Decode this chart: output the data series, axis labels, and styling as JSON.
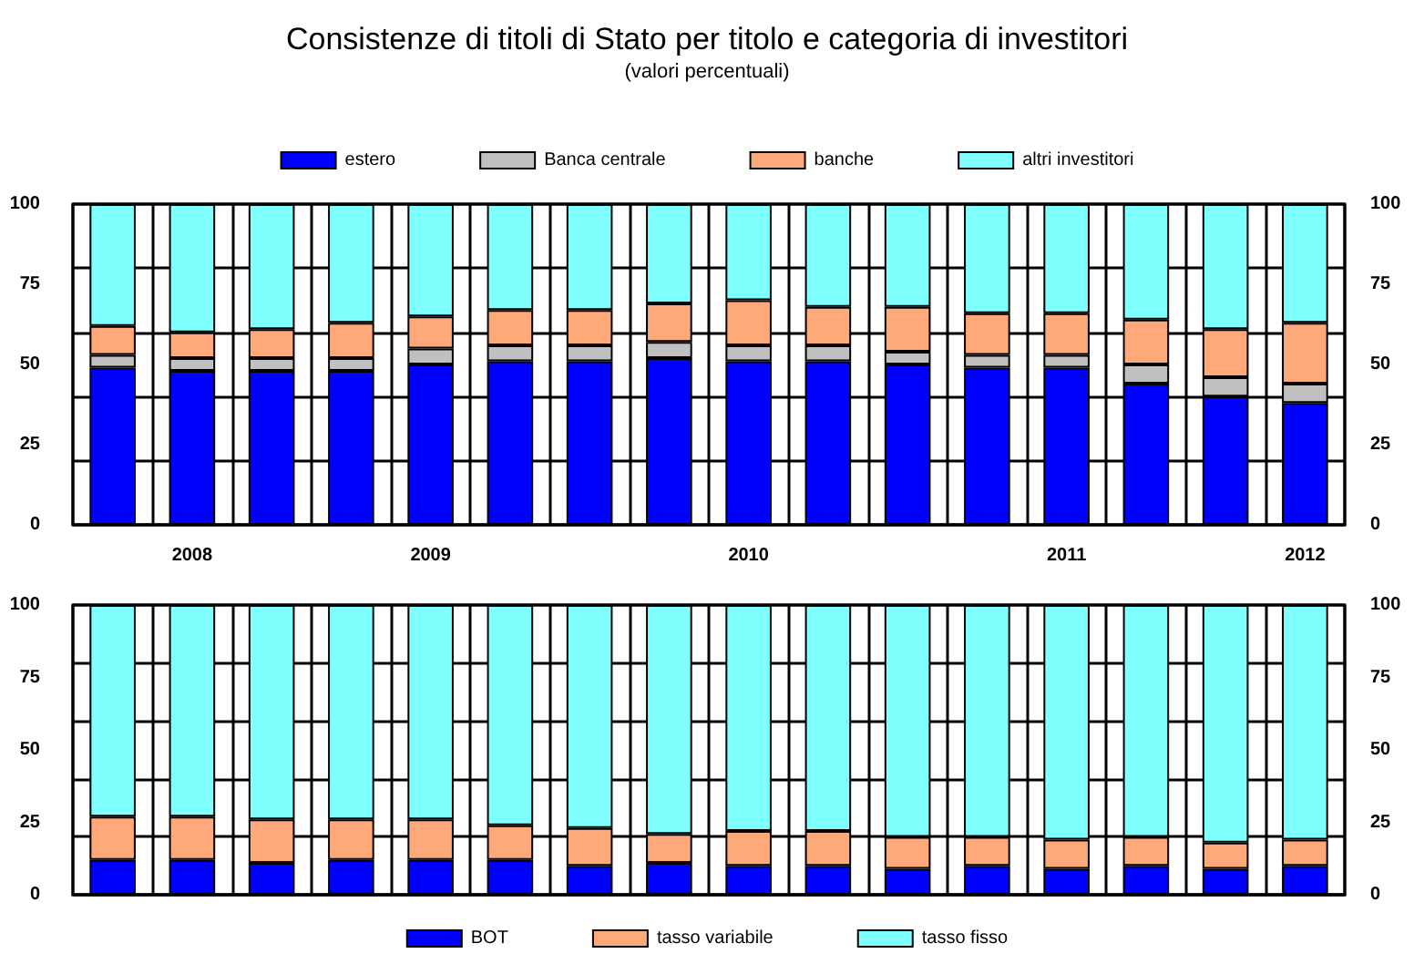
{
  "chart_data": [
    {
      "type": "bar",
      "title": "Consistenze di titoli di Stato per titolo e categoria di investitori",
      "subtitle": "(valori percentuali)",
      "stacked": true,
      "categories": [
        null,
        "2008",
        null,
        null,
        "2009",
        null,
        null,
        null,
        "2010",
        null,
        null,
        null,
        "2011",
        null,
        null,
        "2012"
      ],
      "series": [
        {
          "name": "estero",
          "color": "#0000ff",
          "values": [
            49,
            48,
            48,
            48,
            50,
            51,
            51,
            52,
            51,
            51,
            50,
            49,
            49,
            44,
            40,
            38
          ]
        },
        {
          "name": "Banca centrale",
          "color": "#c0c0c0",
          "values": [
            4,
            4,
            4,
            4,
            5,
            5,
            5,
            5,
            5,
            5,
            4,
            4,
            4,
            6,
            6,
            6
          ]
        },
        {
          "name": "banche",
          "color": "#ffa97a",
          "values": [
            9,
            8,
            9,
            11,
            10,
            11,
            11,
            12,
            14,
            12,
            14,
            13,
            13,
            14,
            15,
            19
          ]
        },
        {
          "name": "altri investitori",
          "color": "#80ffff",
          "values": [
            38,
            40,
            39,
            37,
            35,
            33,
            33,
            31,
            30,
            32,
            32,
            34,
            34,
            36,
            39,
            37
          ]
        }
      ],
      "ylim": [
        0,
        100
      ],
      "yticks": [
        0,
        25,
        50,
        75,
        100
      ],
      "y2lim": [
        0,
        100
      ],
      "y2ticks": [
        0,
        25,
        50,
        75,
        100
      ],
      "grid": true,
      "legend": "top"
    },
    {
      "type": "bar",
      "stacked": true,
      "categories": [
        null,
        "2008",
        null,
        null,
        "2009",
        null,
        null,
        null,
        "2010",
        null,
        null,
        null,
        "2011",
        null,
        null,
        "2012"
      ],
      "series": [
        {
          "name": "BOT",
          "color": "#0000ff",
          "values": [
            12,
            12,
            11,
            12,
            12,
            12,
            10,
            11,
            10,
            10,
            9,
            10,
            9,
            10,
            9,
            10
          ]
        },
        {
          "name": "tasso variabile",
          "color": "#ffa97a",
          "values": [
            15,
            15,
            15,
            14,
            14,
            12,
            13,
            10,
            12,
            12,
            11,
            10,
            10,
            10,
            9,
            9
          ]
        },
        {
          "name": "tasso fisso",
          "color": "#80ffff",
          "values": [
            73,
            73,
            74,
            74,
            74,
            76,
            77,
            79,
            78,
            78,
            80,
            80,
            81,
            80,
            82,
            81
          ]
        }
      ],
      "ylim": [
        0,
        100
      ],
      "yticks": [
        0,
        25,
        50,
        75,
        100
      ],
      "y2lim": [
        0,
        100
      ],
      "y2ticks": [
        0,
        25,
        50,
        75,
        100
      ],
      "grid": true,
      "legend": "bottom",
      "tick_labels": "y"
    }
  ]
}
